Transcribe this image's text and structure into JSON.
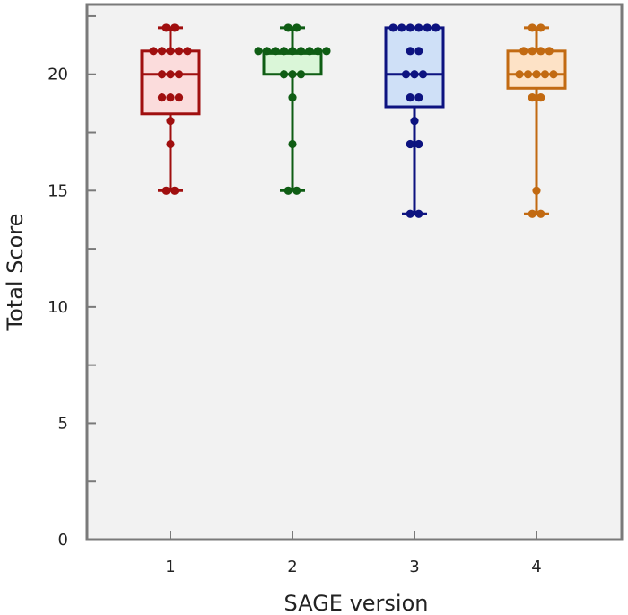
{
  "chart_data": {
    "type": "boxplot",
    "title": "",
    "xlabel": "SAGE version",
    "ylabel": "Total  Score",
    "ylim": [
      0,
      23
    ],
    "yticks": [
      0,
      5,
      10,
      15,
      20
    ],
    "ytick_labels": [
      "0",
      "5",
      "10",
      "15",
      "20"
    ],
    "grid": false,
    "categories": [
      "1",
      "2",
      "3",
      "4"
    ],
    "series": [
      {
        "name": "1",
        "color": "#a00f0f",
        "fill": "#fbdcdc",
        "whisker_low": 15,
        "q1": 18.3,
        "median": 20,
        "q3": 21,
        "whisker_high": 22,
        "points": [
          22,
          22,
          21,
          21,
          21,
          21,
          21,
          20,
          20,
          20,
          19,
          19,
          19,
          18,
          17,
          15,
          15
        ]
      },
      {
        "name": "2",
        "color": "#0f5d14",
        "fill": "#daf6d8",
        "whisker_low": 15,
        "q1": 20,
        "median": 20.9,
        "q3": 21,
        "whisker_high": 22,
        "points": [
          22,
          22,
          21,
          21,
          21,
          21,
          21,
          21,
          21,
          21,
          21,
          20,
          20,
          20,
          19,
          17,
          15,
          15
        ]
      },
      {
        "name": "3",
        "color": "#0d1380",
        "fill": "#cfe0f7",
        "whisker_low": 14,
        "q1": 18.6,
        "median": 20,
        "q3": 22,
        "whisker_high": 22,
        "points": [
          22,
          22,
          22,
          22,
          22,
          22,
          21,
          21,
          20,
          20,
          20,
          19,
          19,
          18,
          17,
          17,
          14,
          14
        ]
      },
      {
        "name": "4",
        "color": "#c26a12",
        "fill": "#fde2c6",
        "whisker_low": 14,
        "q1": 19.4,
        "median": 20,
        "q3": 21,
        "whisker_high": 22,
        "points": [
          22,
          22,
          21,
          21,
          21,
          21,
          20,
          20,
          20,
          20,
          20,
          19,
          19,
          15,
          14,
          14
        ]
      }
    ]
  }
}
